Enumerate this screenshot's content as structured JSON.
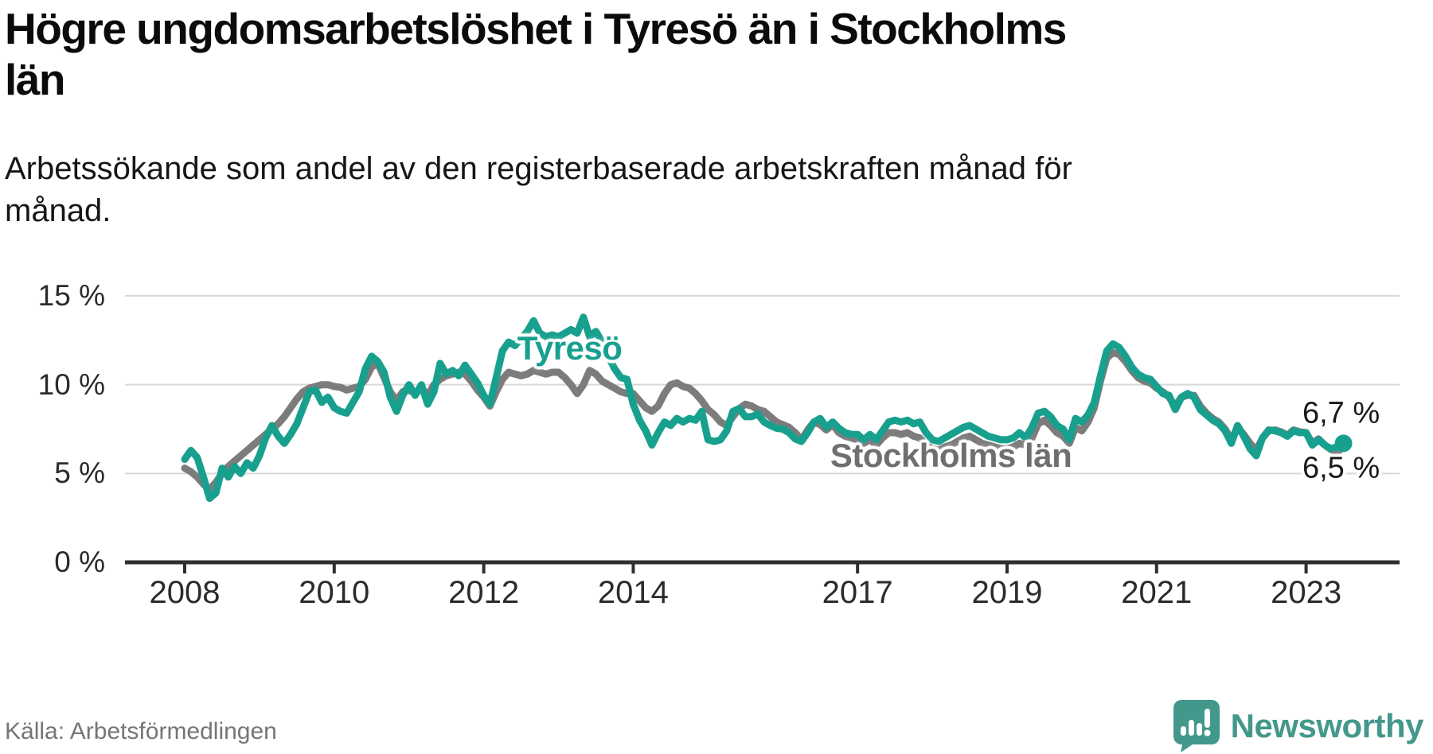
{
  "header": {
    "title": "Högre ungdomsarbetslöshet i Tyresö än i Stockholms\nlän",
    "subtitle": "Arbetssökande som andel av den registerbaserade arbetskraften månad för\nmånad."
  },
  "footer": {
    "source": "Källa: Arbetsförmedlingen",
    "brand": "Newsworthy",
    "logo_icon": "newsworthy-speech-bubble-bar-chart-icon"
  },
  "colors": {
    "tyreso": "#18A08F",
    "stockholm": "#7C7C7C",
    "stockholm_label": "#6F6F6F",
    "grid": "#D8D8D8",
    "axis": "#2F2F2F",
    "brand_teal": "#43988C"
  },
  "chart_data": {
    "type": "line",
    "title": "Högre ungdomsarbetslöshet i Tyresö än i Stockholms län",
    "subtitle": "Arbetssökande som andel av den registerbaserade arbetskraften månad för månad.",
    "unit": "%",
    "x_start_year": 2008,
    "x_step_months": 1,
    "x_end_label_approx": "mitten av 2023",
    "ylim": [
      0,
      15
    ],
    "grid": "horizontal",
    "legend_position": "inline-labels",
    "y_ticks": [
      {
        "value": 15,
        "label": "15 %"
      },
      {
        "value": 10,
        "label": "10 %"
      },
      {
        "value": 5,
        "label": "5 %"
      },
      {
        "value": 0,
        "label": "0 %"
      }
    ],
    "x_ticks": [
      {
        "year": 2008,
        "label": "2008"
      },
      {
        "year": 2010,
        "label": "2010"
      },
      {
        "year": 2012,
        "label": "2012"
      },
      {
        "year": 2014,
        "label": "2014"
      },
      {
        "year": 2017,
        "label": "2017"
      },
      {
        "year": 2019,
        "label": "2019"
      },
      {
        "year": 2021,
        "label": "2021"
      },
      {
        "year": 2023,
        "label": "2023"
      }
    ],
    "series": [
      {
        "name": "Tyresö",
        "color": "#18A08F",
        "end_label": "6,7 %",
        "end_value": 6.7,
        "end_dot": true,
        "values": [
          5.8,
          6.3,
          5.9,
          4.8,
          3.6,
          3.9,
          5.3,
          4.8,
          5.4,
          5.0,
          5.6,
          5.3,
          6.0,
          7.0,
          7.7,
          7.1,
          6.7,
          7.2,
          7.8,
          8.7,
          9.6,
          9.7,
          9.0,
          9.3,
          8.7,
          8.5,
          8.4,
          9.0,
          9.6,
          10.9,
          11.6,
          11.3,
          10.7,
          9.3,
          8.5,
          9.4,
          10.0,
          9.4,
          10.0,
          8.9,
          9.6,
          11.2,
          10.6,
          10.8,
          10.5,
          11.1,
          10.6,
          10.1,
          9.4,
          8.9,
          10.4,
          11.9,
          12.4,
          12.2,
          12.6,
          13.0,
          13.6,
          12.9,
          12.7,
          12.8,
          12.7,
          12.9,
          13.1,
          12.9,
          13.8,
          12.7,
          13.0,
          12.4,
          11.6,
          10.9,
          10.4,
          10.3,
          8.9,
          8.0,
          7.4,
          6.6,
          7.3,
          7.9,
          7.7,
          8.1,
          7.9,
          8.1,
          8.0,
          8.5,
          6.9,
          6.8,
          6.9,
          7.4,
          8.5,
          8.65,
          8.2,
          8.2,
          8.35,
          7.9,
          7.7,
          7.55,
          7.5,
          7.3,
          6.95,
          6.8,
          7.3,
          7.9,
          8.1,
          7.6,
          7.9,
          7.55,
          7.3,
          7.2,
          7.2,
          6.9,
          7.2,
          6.9,
          7.4,
          7.9,
          8.0,
          7.9,
          8.0,
          7.8,
          7.9,
          7.3,
          6.9,
          6.8,
          7.0,
          7.2,
          7.4,
          7.6,
          7.7,
          7.5,
          7.3,
          7.1,
          7.0,
          6.9,
          6.9,
          7.0,
          7.3,
          7.0,
          7.6,
          8.4,
          8.5,
          8.2,
          7.7,
          7.5,
          6.9,
          8.1,
          7.9,
          8.3,
          9.0,
          10.5,
          11.9,
          12.3,
          12.1,
          11.6,
          11.0,
          10.6,
          10.4,
          10.3,
          9.9,
          9.5,
          9.4,
          8.6,
          9.3,
          9.5,
          9.3,
          8.6,
          8.3,
          8.0,
          7.8,
          7.4,
          6.7,
          7.7,
          7.1,
          6.4,
          6.0,
          7.0,
          7.45,
          7.4,
          7.3,
          7.1,
          7.4,
          7.3,
          7.3,
          6.6,
          6.9,
          6.6,
          6.4,
          6.5,
          6.7
        ]
      },
      {
        "name": "Stockholms län",
        "color": "#7C7C7C",
        "end_label": "6,5 %",
        "end_value": 6.5,
        "end_dot": false,
        "values": [
          5.3,
          5.1,
          4.8,
          4.4,
          4.1,
          4.5,
          5.0,
          5.4,
          5.7,
          6.0,
          6.3,
          6.6,
          6.9,
          7.2,
          7.5,
          7.8,
          8.2,
          8.7,
          9.2,
          9.6,
          9.8,
          9.9,
          10.0,
          10.0,
          9.9,
          9.85,
          9.7,
          9.8,
          9.9,
          10.3,
          11.0,
          11.2,
          10.4,
          9.6,
          9.1,
          9.6,
          9.7,
          9.5,
          9.8,
          9.4,
          10.0,
          10.3,
          10.5,
          10.6,
          10.7,
          10.6,
          10.2,
          9.7,
          9.3,
          8.8,
          9.6,
          10.3,
          10.7,
          10.6,
          10.5,
          10.6,
          10.8,
          10.7,
          10.6,
          10.7,
          10.7,
          10.4,
          10.0,
          9.5,
          10.0,
          10.8,
          10.6,
          10.2,
          10.0,
          9.8,
          9.6,
          9.5,
          9.5,
          9.1,
          8.7,
          8.5,
          8.8,
          9.5,
          10.0,
          10.1,
          9.9,
          9.8,
          9.5,
          9.1,
          8.6,
          8.3,
          7.9,
          7.7,
          8.2,
          8.65,
          8.9,
          8.8,
          8.6,
          8.5,
          8.2,
          7.9,
          7.75,
          7.6,
          7.3,
          6.9,
          7.45,
          7.9,
          7.75,
          7.45,
          7.75,
          7.3,
          7.1,
          7.0,
          6.9,
          6.7,
          6.9,
          6.6,
          7.0,
          7.3,
          7.3,
          7.2,
          7.3,
          7.1,
          7.0,
          6.6,
          6.4,
          6.3,
          6.5,
          6.6,
          6.8,
          7.0,
          7.1,
          6.9,
          6.7,
          6.6,
          6.5,
          6.4,
          6.4,
          6.5,
          6.7,
          6.6,
          7.0,
          7.8,
          8.0,
          7.7,
          7.3,
          7.1,
          6.7,
          7.6,
          7.4,
          7.9,
          8.7,
          10.2,
          11.5,
          11.8,
          11.7,
          11.3,
          10.8,
          10.4,
          10.2,
          10.1,
          9.8,
          9.6,
          9.3,
          8.8,
          9.3,
          9.4,
          9.4,
          8.8,
          8.4,
          8.1,
          7.9,
          7.5,
          6.9,
          7.6,
          7.2,
          6.7,
          6.3,
          7.0,
          7.4,
          7.45,
          7.35,
          7.15,
          7.45,
          7.35,
          7.3,
          6.7,
          6.95,
          6.6,
          6.35,
          6.2,
          6.5
        ]
      }
    ],
    "annotations": [
      {
        "text": "Tyresö",
        "color": "#18A08F",
        "year": 2013.15,
        "value": 12.05
      },
      {
        "text": "Stockholms län",
        "color": "#6F6F6F",
        "year": 2018.25,
        "value": 6.0
      }
    ]
  }
}
